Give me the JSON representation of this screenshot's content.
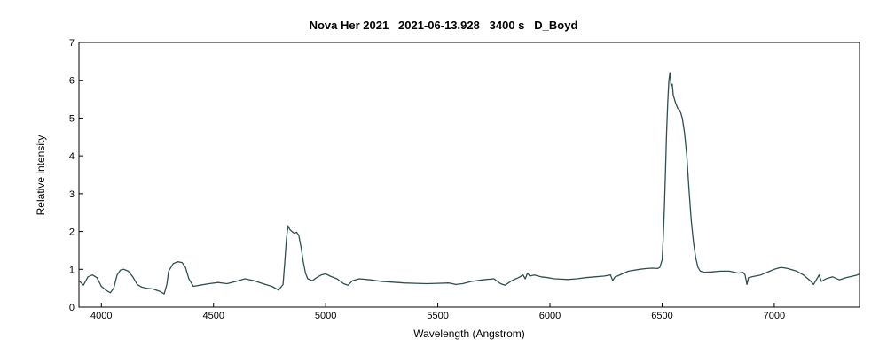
{
  "chart_data": {
    "type": "line",
    "title": "Nova Her 2021   2021-06-13.928   3400 s   D_Boyd",
    "xlabel": "Wavelength (Angstrom)",
    "ylabel": "Relative intensity",
    "xlim": [
      3900,
      7380
    ],
    "ylim": [
      0,
      7
    ],
    "xticks": [
      4000,
      4500,
      5000,
      5500,
      6000,
      6500,
      7000
    ],
    "yticks": [
      0,
      1,
      2,
      3,
      4,
      5,
      6,
      7
    ],
    "grid": false,
    "line_color": "#2f4f4f",
    "series": [
      {
        "x": [
          3900,
          3920,
          3940,
          3960,
          3980,
          4000,
          4020,
          4040,
          4055,
          4070,
          4085,
          4100,
          4120,
          4140,
          4160,
          4180,
          4200,
          4230,
          4260,
          4280,
          4292,
          4300,
          4320,
          4340,
          4360,
          4375,
          4390,
          4410,
          4440,
          4480,
          4520,
          4560,
          4600,
          4640,
          4680,
          4720,
          4760,
          4790,
          4810,
          4818,
          4825,
          4832,
          4840,
          4850,
          4860,
          4870,
          4880,
          4890,
          4900,
          4910,
          4920,
          4940,
          4960,
          4980,
          5000,
          5020,
          5050,
          5080,
          5100,
          5120,
          5150,
          5200,
          5250,
          5300,
          5350,
          5400,
          5450,
          5500,
          5550,
          5580,
          5610,
          5650,
          5700,
          5750,
          5780,
          5800,
          5830,
          5860,
          5880,
          5890,
          5900,
          5910,
          5930,
          5960,
          5990,
          6020,
          6050,
          6080,
          6120,
          6160,
          6200,
          6240,
          6270,
          6280,
          6290,
          6300,
          6350,
          6400,
          6430,
          6460,
          6480,
          6490,
          6500,
          6505,
          6510,
          6515,
          6520,
          6525,
          6530,
          6535,
          6540,
          6545,
          6550,
          6555,
          6560,
          6570,
          6580,
          6590,
          6600,
          6610,
          6620,
          6630,
          6640,
          6650,
          6660,
          6670,
          6690,
          6720,
          6760,
          6800,
          6840,
          6860,
          6870,
          6878,
          6885,
          6900,
          6940,
          6980,
          7000,
          7030,
          7060,
          7100,
          7130,
          7160,
          7175,
          7190,
          7200,
          7210,
          7230,
          7260,
          7290,
          7320,
          7350,
          7370,
          7380
        ],
        "y": [
          0.7,
          0.58,
          0.8,
          0.85,
          0.78,
          0.55,
          0.45,
          0.38,
          0.5,
          0.85,
          0.98,
          1.0,
          0.95,
          0.8,
          0.6,
          0.53,
          0.5,
          0.48,
          0.42,
          0.35,
          0.6,
          0.95,
          1.15,
          1.2,
          1.18,
          1.05,
          0.75,
          0.55,
          0.58,
          0.62,
          0.65,
          0.62,
          0.68,
          0.75,
          0.7,
          0.62,
          0.55,
          0.45,
          0.6,
          1.2,
          1.8,
          2.15,
          2.05,
          2.0,
          1.95,
          1.98,
          1.9,
          1.6,
          1.2,
          0.9,
          0.75,
          0.7,
          0.78,
          0.85,
          0.88,
          0.82,
          0.75,
          0.62,
          0.58,
          0.7,
          0.75,
          0.72,
          0.68,
          0.66,
          0.64,
          0.63,
          0.62,
          0.63,
          0.64,
          0.6,
          0.62,
          0.68,
          0.72,
          0.75,
          0.62,
          0.58,
          0.7,
          0.78,
          0.85,
          0.75,
          0.9,
          0.82,
          0.85,
          0.8,
          0.78,
          0.75,
          0.74,
          0.73,
          0.75,
          0.78,
          0.8,
          0.82,
          0.85,
          0.7,
          0.8,
          0.82,
          0.95,
          1.0,
          1.02,
          1.03,
          1.02,
          1.05,
          1.25,
          1.8,
          2.6,
          3.6,
          4.6,
          5.4,
          6.0,
          6.2,
          5.85,
          5.9,
          5.6,
          5.5,
          5.4,
          5.25,
          5.2,
          5.0,
          4.6,
          4.0,
          3.1,
          2.3,
          1.7,
          1.3,
          1.05,
          0.95,
          0.92,
          0.93,
          0.95,
          0.95,
          0.9,
          0.92,
          0.85,
          0.6,
          0.78,
          0.8,
          0.85,
          0.95,
          1.0,
          1.05,
          1.02,
          0.95,
          0.85,
          0.7,
          0.6,
          0.75,
          0.85,
          0.68,
          0.75,
          0.8,
          0.72,
          0.78,
          0.82,
          0.85,
          0.88
        ]
      }
    ]
  }
}
